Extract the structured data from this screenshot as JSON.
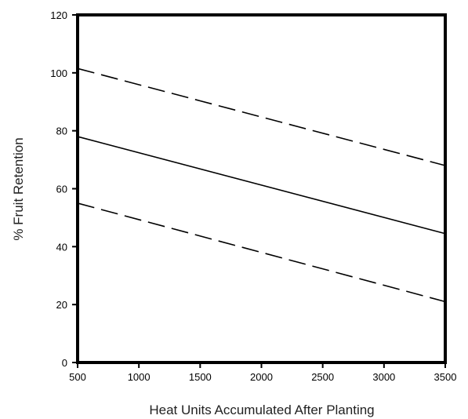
{
  "chart_data": {
    "type": "line",
    "xlabel": "Heat Units Accumulated After Planting",
    "ylabel": "% Fruit Retention",
    "xlim": [
      500,
      3500
    ],
    "ylim": [
      0,
      120
    ],
    "xticks": [
      500,
      1000,
      1500,
      2000,
      2500,
      3000,
      3500
    ],
    "yticks": [
      0,
      20,
      40,
      60,
      80,
      100,
      120
    ],
    "grid": false,
    "legend": "none",
    "series": [
      {
        "style": "dashed",
        "x": [
          500,
          3500
        ],
        "y": [
          101.5,
          68
        ]
      },
      {
        "style": "solid",
        "x": [
          500,
          3500
        ],
        "y": [
          78,
          44.5
        ]
      },
      {
        "style": "dashed",
        "x": [
          500,
          3500
        ],
        "y": [
          55,
          21
        ]
      }
    ],
    "colors": {
      "line": "#000000",
      "frame": "#000000"
    }
  }
}
